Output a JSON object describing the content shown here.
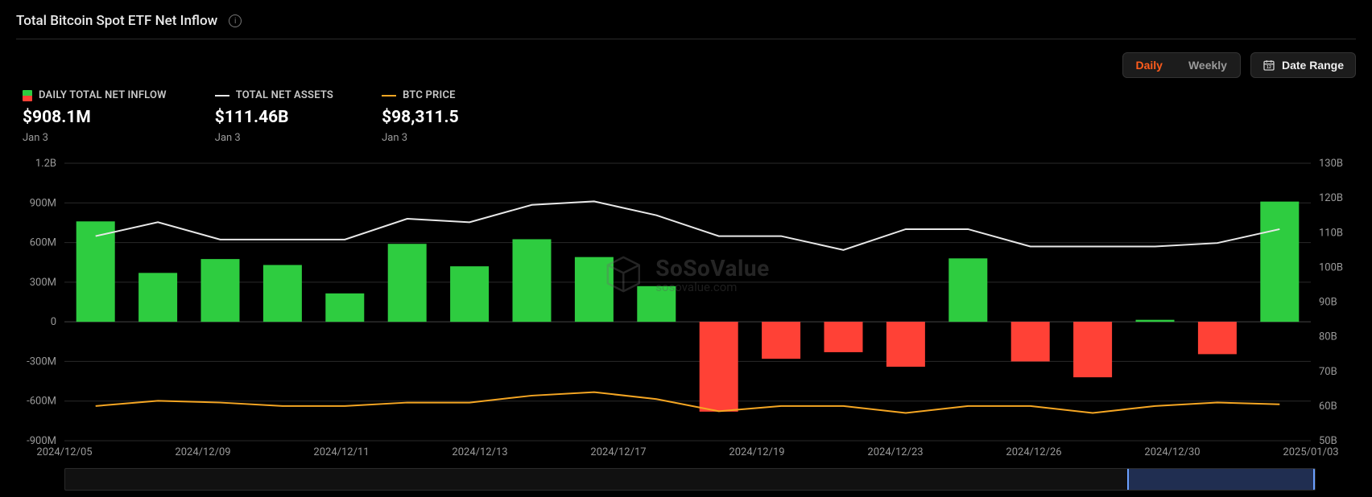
{
  "header": {
    "title": "Total Bitcoin Spot ETF Net Inflow"
  },
  "controls": {
    "interval": {
      "options": [
        "Daily",
        "Weekly"
      ],
      "active": "Daily",
      "active_color": "#ff5c1c"
    },
    "date_range_label": "Date Range"
  },
  "legend": {
    "inflow": {
      "label": "DAILY TOTAL NET INFLOW",
      "value": "$908.1M",
      "date": "Jan 3",
      "pos_color": "#2ecc40",
      "neg_color": "#ff4136"
    },
    "assets": {
      "label": "TOTAL NET ASSETS",
      "value": "$111.46B",
      "date": "Jan 3",
      "line_color": "#e8e8e8"
    },
    "price": {
      "label": "BTC PRICE",
      "value": "$98,311.5",
      "date": "Jan 3",
      "line_color": "#f5a623"
    }
  },
  "chart": {
    "background": "#000000",
    "grid_color": "#2a2a2a",
    "zero_line_color": "#444444",
    "axis_label_color": "#9a9a9a",
    "axis_fontsize": 13,
    "left_axis": {
      "min": -900,
      "max": 1200,
      "step": 300,
      "labels": [
        "1.2B",
        "900M",
        "600M",
        "300M",
        "0",
        "-300M",
        "-600M",
        "-900M"
      ]
    },
    "right_axis": {
      "min": 50,
      "max": 130,
      "step": 10,
      "labels": [
        "130B",
        "120B",
        "110B",
        "100B",
        "90B",
        "80B",
        "70B",
        "60B",
        "50B"
      ]
    },
    "x_labels": [
      "2024/12/05",
      "2024/12/09",
      "2024/12/11",
      "2024/12/13",
      "2024/12/17",
      "2024/12/19",
      "2024/12/23",
      "2024/12/26",
      "2024/12/30",
      "2025/01/03"
    ],
    "series": {
      "bars": {
        "type": "bar",
        "pos_color": "#2ecc40",
        "neg_color": "#ff4136",
        "bar_width_frac": 0.62,
        "values": [
          760,
          370,
          475,
          430,
          215,
          590,
          420,
          625,
          490,
          270,
          -680,
          -280,
          -230,
          -340,
          480,
          -300,
          -420,
          15,
          -245,
          910
        ]
      },
      "assets": {
        "type": "line",
        "color": "#e8e8e8",
        "width": 2,
        "unit": "B",
        "values": [
          109,
          113,
          108,
          108,
          108,
          114,
          113,
          118,
          119,
          115,
          109,
          109,
          105,
          111,
          111,
          106,
          106,
          106,
          107,
          111
        ]
      },
      "price": {
        "type": "line",
        "color": "#f5a623",
        "width": 2,
        "unit": "B_scale",
        "values": [
          60,
          61.5,
          61,
          60,
          60,
          61,
          61,
          63,
          64,
          62,
          58.5,
          60,
          60,
          58,
          60,
          60,
          58,
          60,
          61,
          60.5
        ]
      }
    }
  },
  "watermark": {
    "title": "SoSoValue",
    "sub": "sosovalue.com",
    "logo_color": "#6b6b6b"
  },
  "scrub": {
    "selection_start_pct": 85,
    "selection_end_pct": 100,
    "fill_color": "rgba(60,100,200,0.35)",
    "handle_color": "#6aa0ff"
  }
}
